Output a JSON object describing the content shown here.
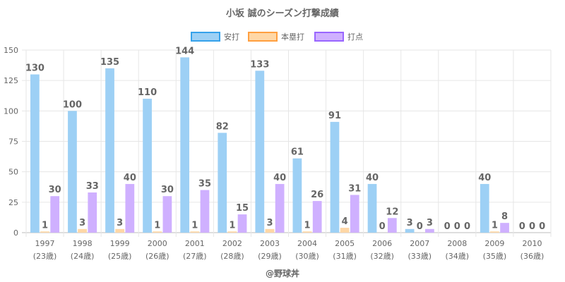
{
  "chart_data": {
    "type": "bar",
    "title": "小坂 誠のシーズン打撃成績",
    "categories": [
      "1997",
      "1998",
      "1999",
      "2000",
      "2001",
      "2002",
      "2003",
      "2004",
      "2005",
      "2006",
      "2007",
      "2008",
      "2009",
      "2010"
    ],
    "category_sublabels": [
      "(23歳)",
      "(24歳)",
      "(25歳)",
      "(26歳)",
      "(27歳)",
      "(28歳)",
      "(29歳)",
      "(30歳)",
      "(31歳)",
      "(32歳)",
      "(33歳)",
      "(34歳)",
      "(35歳)",
      "(36歳)"
    ],
    "series": [
      {
        "name": "安打",
        "color": "#9dd0f5",
        "border": "#36a2eb",
        "values": [
          130,
          100,
          135,
          110,
          144,
          82,
          133,
          61,
          91,
          40,
          3,
          0,
          40,
          0
        ]
      },
      {
        "name": "本塁打",
        "color": "#ffd7a6",
        "border": "#ff9f40",
        "values": [
          1,
          3,
          3,
          1,
          1,
          1,
          3,
          1,
          4,
          0,
          0,
          0,
          1,
          0
        ]
      },
      {
        "name": "打点",
        "color": "#cfb0ff",
        "border": "#9966ff",
        "values": [
          30,
          33,
          40,
          30,
          35,
          15,
          40,
          26,
          31,
          12,
          3,
          0,
          8,
          0
        ]
      }
    ],
    "ylim": [
      0,
      150
    ],
    "yticks": [
      0,
      25,
      50,
      75,
      100,
      125,
      150
    ],
    "legend_position": "top-center",
    "grid": true
  },
  "credit": "@野球丼"
}
